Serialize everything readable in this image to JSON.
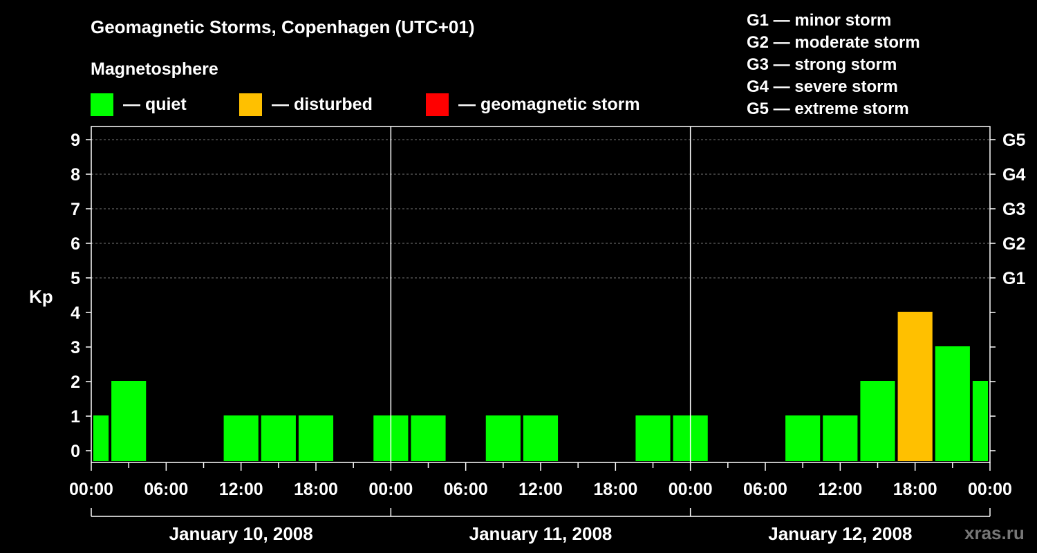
{
  "title": "Geomagnetic Storms, Copenhagen (UTC+01)",
  "magnetosphere": {
    "title": "Magnetosphere",
    "legend": [
      {
        "label": "— quiet",
        "color": "#00ff00"
      },
      {
        "label": "— disturbed",
        "color": "#ffc000"
      },
      {
        "label": "— geomagnetic storm",
        "color": "#ff0000"
      }
    ]
  },
  "storm_scale": [
    "G1 — minor storm",
    "G2 — moderate storm",
    "G3 — strong storm",
    "G4 — severe storm",
    "G5 — extreme storm"
  ],
  "watermark": "xras.ru",
  "colors": {
    "quiet": "#00ff00",
    "disturbed": "#ffc000",
    "storm": "#ff0000",
    "background": "#000000",
    "axes": "#ffffff"
  },
  "chart_data": {
    "type": "bar",
    "ylabel": "Kp",
    "ylim": [
      0,
      9
    ],
    "yticks": [
      "0",
      "1",
      "2",
      "3",
      "4",
      "5",
      "6",
      "7",
      "8",
      "9"
    ],
    "right_ticks": [
      {
        "kp": 5,
        "label": "G1"
      },
      {
        "kp": 6,
        "label": "G2"
      },
      {
        "kp": 7,
        "label": "G3"
      },
      {
        "kp": 8,
        "label": "G4"
      },
      {
        "kp": 9,
        "label": "G5"
      }
    ],
    "grid": true,
    "xlim_hours": [
      0,
      72
    ],
    "xtick_labels": [
      "00:00",
      "06:00",
      "12:00",
      "18:00",
      "00:00",
      "06:00",
      "12:00",
      "18:00",
      "00:00",
      "06:00",
      "12:00",
      "18:00",
      "00:00"
    ],
    "dates": [
      "January 10, 2008",
      "January 11, 2008",
      "January 12, 2008"
    ],
    "series": [
      {
        "values": [
          {
            "hour": 0,
            "kp": 1,
            "status": "quiet"
          },
          {
            "hour": 3,
            "kp": 2,
            "status": "quiet"
          },
          {
            "hour": 6,
            "kp": 0,
            "status": "quiet"
          },
          {
            "hour": 9,
            "kp": 0,
            "status": "quiet"
          },
          {
            "hour": 12,
            "kp": 1,
            "status": "quiet"
          },
          {
            "hour": 15,
            "kp": 1,
            "status": "quiet"
          },
          {
            "hour": 18,
            "kp": 1,
            "status": "quiet"
          },
          {
            "hour": 21,
            "kp": 0,
            "status": "quiet"
          },
          {
            "hour": 24,
            "kp": 1,
            "status": "quiet"
          },
          {
            "hour": 27,
            "kp": 1,
            "status": "quiet"
          },
          {
            "hour": 30,
            "kp": 0,
            "status": "quiet"
          },
          {
            "hour": 33,
            "kp": 1,
            "status": "quiet"
          },
          {
            "hour": 36,
            "kp": 1,
            "status": "quiet"
          },
          {
            "hour": 39,
            "kp": 0,
            "status": "quiet"
          },
          {
            "hour": 42,
            "kp": 0,
            "status": "quiet"
          },
          {
            "hour": 45,
            "kp": 1,
            "status": "quiet"
          },
          {
            "hour": 48,
            "kp": 1,
            "status": "quiet"
          },
          {
            "hour": 51,
            "kp": 0,
            "status": "quiet"
          },
          {
            "hour": 54,
            "kp": 0,
            "status": "quiet"
          },
          {
            "hour": 57,
            "kp": 1,
            "status": "quiet"
          },
          {
            "hour": 60,
            "kp": 1,
            "status": "quiet"
          },
          {
            "hour": 63,
            "kp": 2,
            "status": "quiet"
          },
          {
            "hour": 66,
            "kp": 4,
            "status": "disturbed"
          },
          {
            "hour": 69,
            "kp": 3,
            "status": "quiet"
          },
          {
            "hour": 72,
            "kp": 2,
            "status": "quiet"
          }
        ]
      }
    ]
  }
}
